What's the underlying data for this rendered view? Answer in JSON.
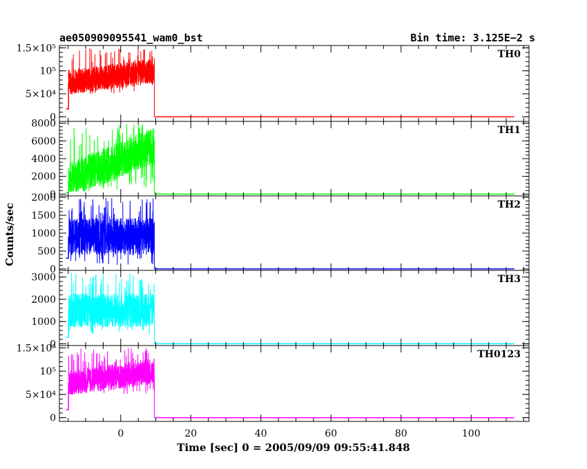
{
  "title_left": "ae050909095541_wam0_bst",
  "title_right": "Bin time: 3.125E−2 s",
  "chart_data": {
    "type": "line",
    "xlabel": "Time [sec] 0 = 2005/09/09 09:55:41.848",
    "ylabel": "Counts/sec",
    "xlim": [
      -17.5,
      116.5
    ],
    "x_ticks": [
      0,
      20,
      40,
      60,
      80,
      100
    ],
    "x_tick_labels": [
      "0",
      "20",
      "40",
      "60",
      "80",
      "100"
    ],
    "panels": [
      {
        "name": "TH0",
        "color": "#ff0000",
        "ylim": [
          -10000,
          155000
        ],
        "y_ticks": [
          0,
          50000,
          100000,
          150000
        ],
        "y_tick_labels": [
          "0",
          "5×10⁴",
          "10⁵",
          "1.5×10⁵"
        ],
        "pre_trigger": {
          "x": [
            -15.6,
            -14.9
          ],
          "y": 17000
        },
        "burst": {
          "x_start": -14.9,
          "x_end": 9.6,
          "y_start": 75000,
          "y_end": 100000,
          "spike_max": 150000,
          "y_min": 50000
        },
        "baseline": {
          "x": [
            9.6,
            112.3
          ],
          "y": 0
        }
      },
      {
        "name": "TH1",
        "color": "#00ff00",
        "ylim": [
          -200,
          8200
        ],
        "y_ticks": [
          0,
          2000,
          4000,
          6000,
          8000
        ],
        "y_tick_labels": [
          "0",
          "2000",
          "4000",
          "6000",
          "8000"
        ],
        "pre_trigger": {
          "x": [
            -15.6,
            -14.9
          ],
          "y": 200
        },
        "burst": {
          "x_start": -14.9,
          "x_end": 9.6,
          "y_start": 1500,
          "y_end": 5500,
          "spike_max": 8000,
          "y_min": 500
        },
        "baseline": {
          "x": [
            9.6,
            112.3
          ],
          "y": 0
        }
      },
      {
        "name": "TH2",
        "color": "#0000ff",
        "ylim": [
          -40,
          2040
        ],
        "y_ticks": [
          0,
          500,
          1000,
          1500,
          2000
        ],
        "y_tick_labels": [
          "0",
          "500",
          "1000",
          "1500",
          "2000"
        ],
        "pre_trigger": {
          "x": [
            -15.6,
            -14.9
          ],
          "y": 300
        },
        "burst": {
          "x_start": -14.9,
          "x_end": 9.6,
          "y_start": 900,
          "y_end": 900,
          "spike_max": 2000,
          "y_min": 100
        },
        "baseline": {
          "x": [
            9.6,
            112.3
          ],
          "y": 0
        }
      },
      {
        "name": "TH3",
        "color": "#00ffff",
        "ylim": [
          -80,
          3300
        ],
        "y_ticks": [
          0,
          1000,
          2000,
          3000
        ],
        "y_tick_labels": [
          "0",
          "1000",
          "2000",
          "3000"
        ],
        "pre_trigger": {
          "x": [
            -15.6,
            -14.9
          ],
          "y": 300
        },
        "burst": {
          "x_start": -14.9,
          "x_end": 9.6,
          "y_start": 1500,
          "y_end": 1500,
          "spike_max": 3200,
          "y_min": 400
        },
        "baseline": {
          "x": [
            9.6,
            112.3
          ],
          "y": 0
        }
      },
      {
        "name": "TH0123",
        "color": "#ff00ff",
        "ylim": [
          -8000,
          155000
        ],
        "y_ticks": [
          0,
          50000,
          100000,
          150000
        ],
        "y_tick_labels": [
          "0",
          "5×10⁴",
          "10⁵",
          "1.5×10⁵"
        ],
        "pre_trigger": {
          "x": [
            -15.6,
            -14.9
          ],
          "y": 17000
        },
        "burst": {
          "x_start": -14.9,
          "x_end": 9.6,
          "y_start": 75000,
          "y_end": 100000,
          "spike_max": 150000,
          "y_min": 50000
        },
        "baseline": {
          "x": [
            9.6,
            112.3
          ],
          "y": 0
        }
      }
    ]
  }
}
